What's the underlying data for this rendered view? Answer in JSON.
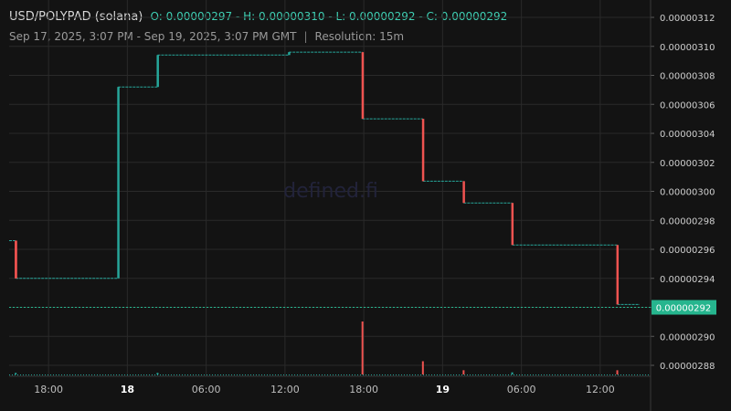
{
  "header": {
    "title": "USD/POLYPAD (solana)",
    "ohlc": "O: 0.00000297 - H: 0.00000310 - L: 0.00000292 - C: 0.00000292"
  },
  "subheader": {
    "range": "Sep 17, 2025, 3:07 PM - Sep 19, 2025, 3:07 PM GMT",
    "separator": "|",
    "resolution": "Resolution: 15m"
  },
  "watermark": "defined.fi",
  "colors": {
    "background": "#131313",
    "grid": "#2a2a2a",
    "up": "#26a69a",
    "down": "#ef5350",
    "last_price_badge": "#26b58e"
  },
  "chart_data": {
    "type": "candlestick",
    "y_ticks": [
      "0.00000312",
      "0.00000310",
      "0.00000308",
      "0.00000306",
      "0.00000304",
      "0.00000302",
      "0.00000300",
      "0.00000298",
      "0.00000296",
      "0.00000294",
      "0.00000292",
      "0.00000290",
      "0.00000288"
    ],
    "x_ticks": [
      {
        "label": "18:00",
        "hour": 3
      },
      {
        "label": "18",
        "hour": 9,
        "bold": true
      },
      {
        "label": "06:00",
        "hour": 15
      },
      {
        "label": "12:00",
        "hour": 21
      },
      {
        "label": "18:00",
        "hour": 27
      },
      {
        "label": "19",
        "hour": 33,
        "bold": true
      },
      {
        "label": "06:00",
        "hour": 39
      },
      {
        "label": "12:00",
        "hour": 45
      }
    ],
    "last_price": "0.00000292",
    "steps": [
      {
        "from_hour": 0.0,
        "to_hour": 0.5,
        "price": 2.966e-06
      },
      {
        "from_hour": 0.5,
        "to_hour": 8.3,
        "price": 2.94e-06
      },
      {
        "from_hour": 8.3,
        "to_hour": 11.3,
        "price": 3.072e-06
      },
      {
        "from_hour": 11.3,
        "to_hour": 21.3,
        "price": 3.094e-06
      },
      {
        "from_hour": 21.3,
        "to_hour": 26.9,
        "price": 3.096e-06
      },
      {
        "from_hour": 26.9,
        "to_hour": 31.5,
        "price": 3.05e-06
      },
      {
        "from_hour": 31.5,
        "to_hour": 34.6,
        "price": 3.007e-06
      },
      {
        "from_hour": 34.6,
        "to_hour": 38.3,
        "price": 2.992e-06
      },
      {
        "from_hour": 38.3,
        "to_hour": 46.3,
        "price": 2.963e-06
      },
      {
        "from_hour": 46.3,
        "to_hour": 48.0,
        "price": 2.922e-06
      }
    ],
    "volume_spikes": [
      {
        "hour": 26.9,
        "value": 1.0,
        "color": "down"
      },
      {
        "hour": 31.5,
        "value": 0.25,
        "color": "down"
      },
      {
        "hour": 34.6,
        "value": 0.08,
        "color": "down"
      },
      {
        "hour": 46.3,
        "value": 0.08,
        "color": "down"
      },
      {
        "hour": 38.3,
        "value": 0.04,
        "color": "up"
      },
      {
        "hour": 11.3,
        "value": 0.03,
        "color": "up"
      },
      {
        "hour": 0.5,
        "value": 0.03,
        "color": "up"
      }
    ]
  }
}
